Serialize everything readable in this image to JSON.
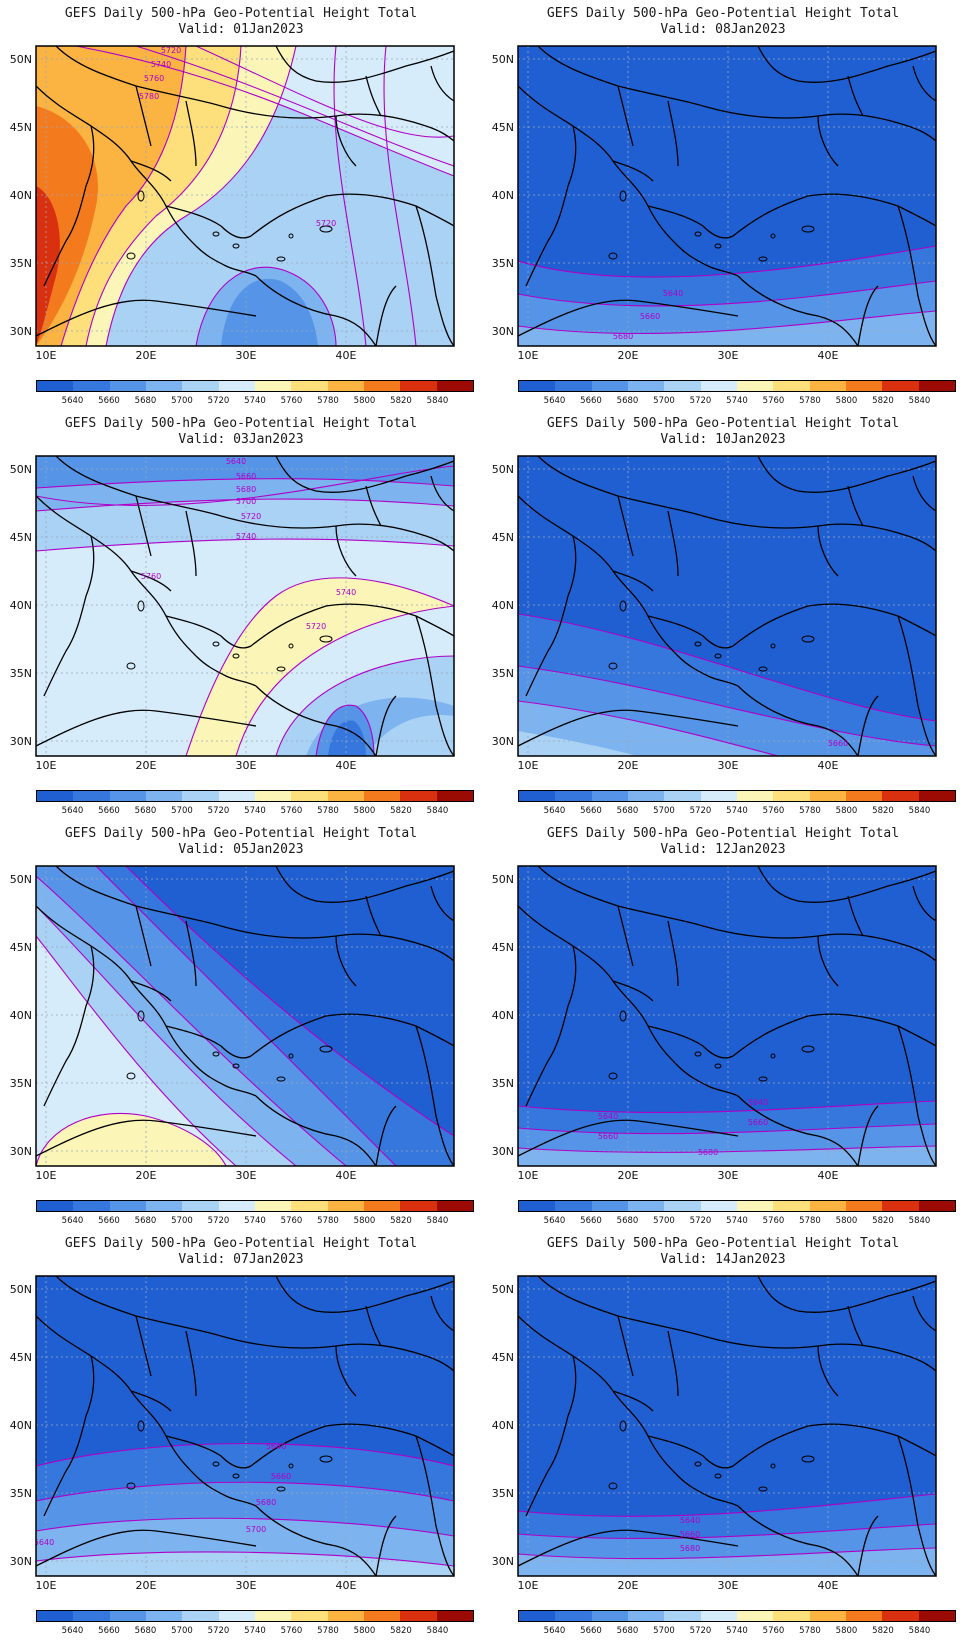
{
  "colors": {
    "map_land": "#3d6fd4",
    "map_coast": "#000000",
    "contour": "#b000c8",
    "grid": "#9aa7bd"
  },
  "colorbar": {
    "labels": [
      "5640",
      "5660",
      "5680",
      "5700",
      "5720",
      "5740",
      "5760",
      "5780",
      "5800",
      "5820",
      "5840"
    ],
    "colors": [
      "#1f5fd1",
      "#3577dc",
      "#5594e6",
      "#7db3ee",
      "#a9d2f5",
      "#d6ecfb",
      "#fbf6b8",
      "#fde07b",
      "#fbb342",
      "#f37a1d",
      "#d9300f",
      "#9c0a04"
    ]
  },
  "axes": {
    "lon_ticks": [
      "10E",
      "20E",
      "30E",
      "40E"
    ],
    "lat_ticks": [
      "30N",
      "35N",
      "40N",
      "45N",
      "50N"
    ]
  },
  "panels": [
    {
      "title": "GEFS Daily 500-hPa Geo-Potential Height Total",
      "valid": "Valid:  01Jan2023",
      "contour_labels": [
        "5720",
        "5740",
        "5760",
        "5780",
        "5720"
      ]
    },
    {
      "title": "GEFS Daily 500-hPa Geo-Potential Height Total",
      "valid": "Valid:  08Jan2023",
      "contour_labels": [
        "5640",
        "5660",
        "5680"
      ]
    },
    {
      "title": "GEFS Daily 500-hPa Geo-Potential Height Total",
      "valid": "Valid:  03Jan2023",
      "contour_labels": [
        "5640",
        "5660",
        "5680",
        "5700",
        "5720",
        "5740",
        "5760",
        "5740",
        "5720"
      ]
    },
    {
      "title": "GEFS Daily 500-hPa Geo-Potential Height Total",
      "valid": "Valid:  10Jan2023",
      "contour_labels": [
        "5660"
      ]
    },
    {
      "title": "GEFS Daily 500-hPa Geo-Potential Height Total",
      "valid": "Valid:  05Jan2023",
      "contour_labels": []
    },
    {
      "title": "GEFS Daily 500-hPa Geo-Potential Height Total",
      "valid": "Valid:  12Jan2023",
      "contour_labels": [
        "5640",
        "5640",
        "5660",
        "5660",
        "5680"
      ]
    },
    {
      "title": "GEFS Daily 500-hPa Geo-Potential Height Total",
      "valid": "Valid:  07Jan2023",
      "contour_labels": [
        "5640",
        "5660",
        "5680",
        "5700",
        "5640"
      ]
    },
    {
      "title": "GEFS Daily 500-hPa Geo-Potential Height Total",
      "valid": "Valid:  14Jan2023",
      "contour_labels": [
        "5640",
        "5660",
        "5680"
      ]
    }
  ]
}
